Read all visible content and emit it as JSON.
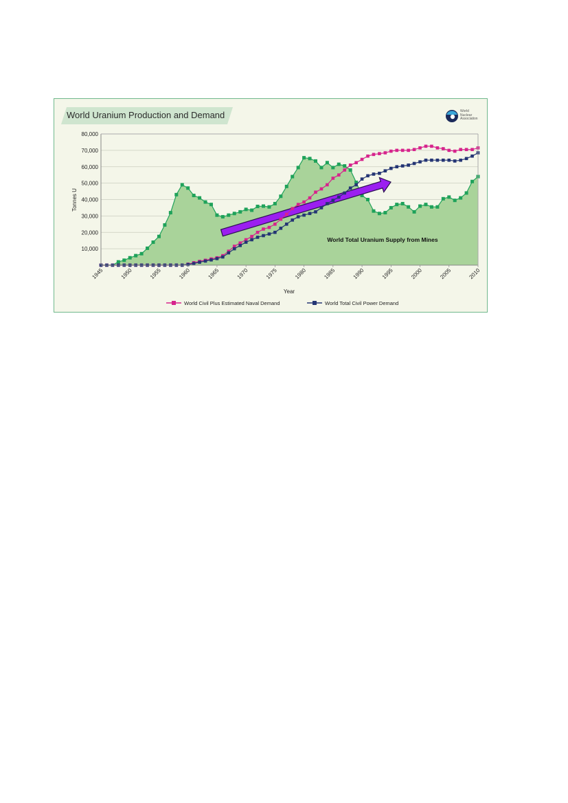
{
  "logo": {
    "line1": "World",
    "line2": "Nuclear",
    "line3": "Association"
  },
  "chart_data": {
    "type": "area",
    "title": "World Uranium Production and Demand",
    "xlabel": "Year",
    "ylabel": "Tonnes U",
    "xlim": [
      1945,
      2010
    ],
    "ylim": [
      0,
      80000
    ],
    "xticks": [
      "1945",
      "1950",
      "1955",
      "1960",
      "1965",
      "1970",
      "1975",
      "1980",
      "1985",
      "1990",
      "1995",
      "2000",
      "2005",
      "2010"
    ],
    "yticks": [
      "10,000",
      "20,000",
      "30,000",
      "40,000",
      "50,000",
      "60,000",
      "70,000",
      "80,000"
    ],
    "grid": true,
    "legend_position": "bottom",
    "annotation": "World Total Uranium Supply from Mines",
    "colors": {
      "supply_fill": "#a9d39a",
      "supply_line": "#1fa25a",
      "naval": "#d6248c",
      "civil": "#243574",
      "arrow": "#9b1ff0"
    },
    "x": [
      1945,
      1946,
      1947,
      1948,
      1949,
      1950,
      1951,
      1952,
      1953,
      1954,
      1955,
      1956,
      1957,
      1958,
      1959,
      1960,
      1961,
      1962,
      1963,
      1964,
      1965,
      1966,
      1967,
      1968,
      1969,
      1970,
      1971,
      1972,
      1973,
      1974,
      1975,
      1976,
      1977,
      1978,
      1979,
      1980,
      1981,
      1982,
      1983,
      1984,
      1985,
      1986,
      1987,
      1988,
      1989,
      1990,
      1991,
      1992,
      1993,
      1994,
      1995,
      1996,
      1997,
      1998,
      1999,
      2000,
      2001,
      2002,
      2003,
      2004,
      2005,
      2006,
      2007,
      2008,
      2009,
      2010
    ],
    "supply": [
      0,
      0,
      0,
      2000,
      3000,
      4500,
      5800,
      7000,
      10300,
      14000,
      17500,
      24500,
      32000,
      43000,
      49000,
      47000,
      42500,
      41000,
      38500,
      37000,
      30500,
      29500,
      30500,
      31500,
      32500,
      34000,
      33500,
      35800,
      36000,
      35500,
      37500,
      42000,
      48000,
      54000,
      59500,
      65500,
      65000,
      63500,
      59500,
      62500,
      59500,
      61500,
      60500,
      58000,
      50500,
      42500,
      40000,
      33000,
      31500,
      32000,
      35000,
      37000,
      37500,
      35500,
      32500,
      36000,
      37000,
      35500,
      35500,
      40500,
      41500,
      39500,
      41000,
      44000,
      51000,
      54000
    ],
    "series": [
      {
        "name": "World Civil Plus Estimated Naval Demand",
        "values": [
          0,
          0,
          0,
          0,
          0,
          0,
          0,
          0,
          0,
          0,
          0,
          0,
          0,
          0,
          0,
          600,
          1500,
          2300,
          3000,
          3800,
          4500,
          5800,
          8500,
          11500,
          13500,
          15500,
          17500,
          20000,
          22000,
          23000,
          25000,
          28000,
          31000,
          34500,
          37000,
          38500,
          41000,
          44500,
          46500,
          49000,
          53000,
          55000,
          58000,
          61000,
          62500,
          64500,
          66500,
          67500,
          68000,
          68500,
          69500,
          70000,
          70000,
          70000,
          70500,
          71500,
          72500,
          72500,
          71500,
          71000,
          70000,
          69500,
          70500,
          70500,
          70500,
          71500
        ]
      },
      {
        "name": "World Total Civil Power Demand",
        "values": [
          0,
          0,
          0,
          0,
          0,
          0,
          0,
          0,
          0,
          0,
          0,
          0,
          0,
          0,
          0,
          400,
          1000,
          1800,
          2500,
          3200,
          4000,
          5000,
          7500,
          10000,
          12000,
          14000,
          15500,
          17000,
          18000,
          19000,
          20000,
          22500,
          25000,
          27500,
          29500,
          30500,
          31500,
          32500,
          35000,
          37500,
          39500,
          41500,
          44000,
          47000,
          49000,
          52500,
          54500,
          55500,
          56000,
          57500,
          59000,
          60000,
          60500,
          61000,
          62000,
          63000,
          64000,
          64000,
          64000,
          64000,
          64000,
          63500,
          64000,
          65000,
          66500,
          68500
        ]
      }
    ]
  }
}
